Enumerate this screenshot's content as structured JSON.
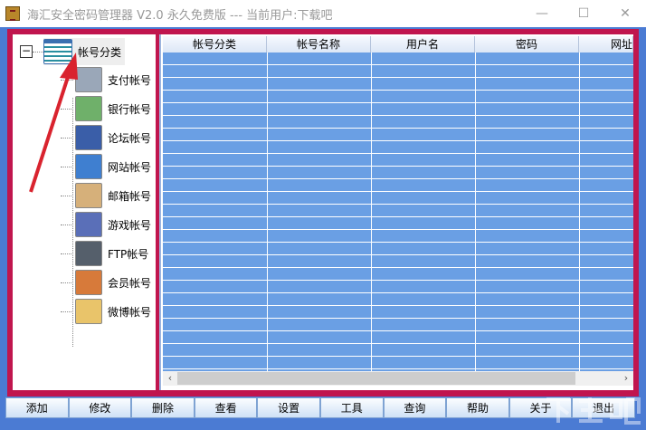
{
  "window": {
    "title": "海汇安全密码管理器 V2.0 永久免费版 --- 当前用户:下载吧",
    "controls": [
      "—",
      "☐",
      "✕"
    ]
  },
  "tree": {
    "root": "帐号分类",
    "root_toggle": "−",
    "items": [
      {
        "label": "支付帐号",
        "icon": "calculator-coins-icon",
        "color": "#9aa7b8"
      },
      {
        "label": "银行帐号",
        "icon": "bank-card-icon",
        "color": "#6fb06a"
      },
      {
        "label": "论坛帐号",
        "icon": "forum-window-icon",
        "color": "#3a5ea8"
      },
      {
        "label": "网站帐号",
        "icon": "network-icon",
        "color": "#3f7fd0"
      },
      {
        "label": "邮箱帐号",
        "icon": "envelope-icon",
        "color": "#d6b07a"
      },
      {
        "label": "游戏帐号",
        "icon": "gamepad-icon",
        "color": "#5a6fb8"
      },
      {
        "label": "FTP帐号",
        "icon": "computer-icon",
        "color": "#555f6b"
      },
      {
        "label": "会员帐号",
        "icon": "users-icon",
        "color": "#d77a3a"
      },
      {
        "label": "微博帐号",
        "icon": "document-window-icon",
        "color": "#e9c46a"
      }
    ]
  },
  "table": {
    "columns": [
      "帐号分类",
      "帐号名称",
      "用户名",
      "密码",
      "网址"
    ],
    "rows": []
  },
  "toolbar": [
    "添加",
    "修改",
    "删除",
    "查看",
    "设置",
    "工具",
    "查询",
    "帮助",
    "关于",
    "退出"
  ],
  "watermark": "下载吧 www.xiazaiba.com",
  "colors": {
    "frame": "#c0154e",
    "window": "#4b7bd3",
    "rows": "#6a9fe4"
  }
}
